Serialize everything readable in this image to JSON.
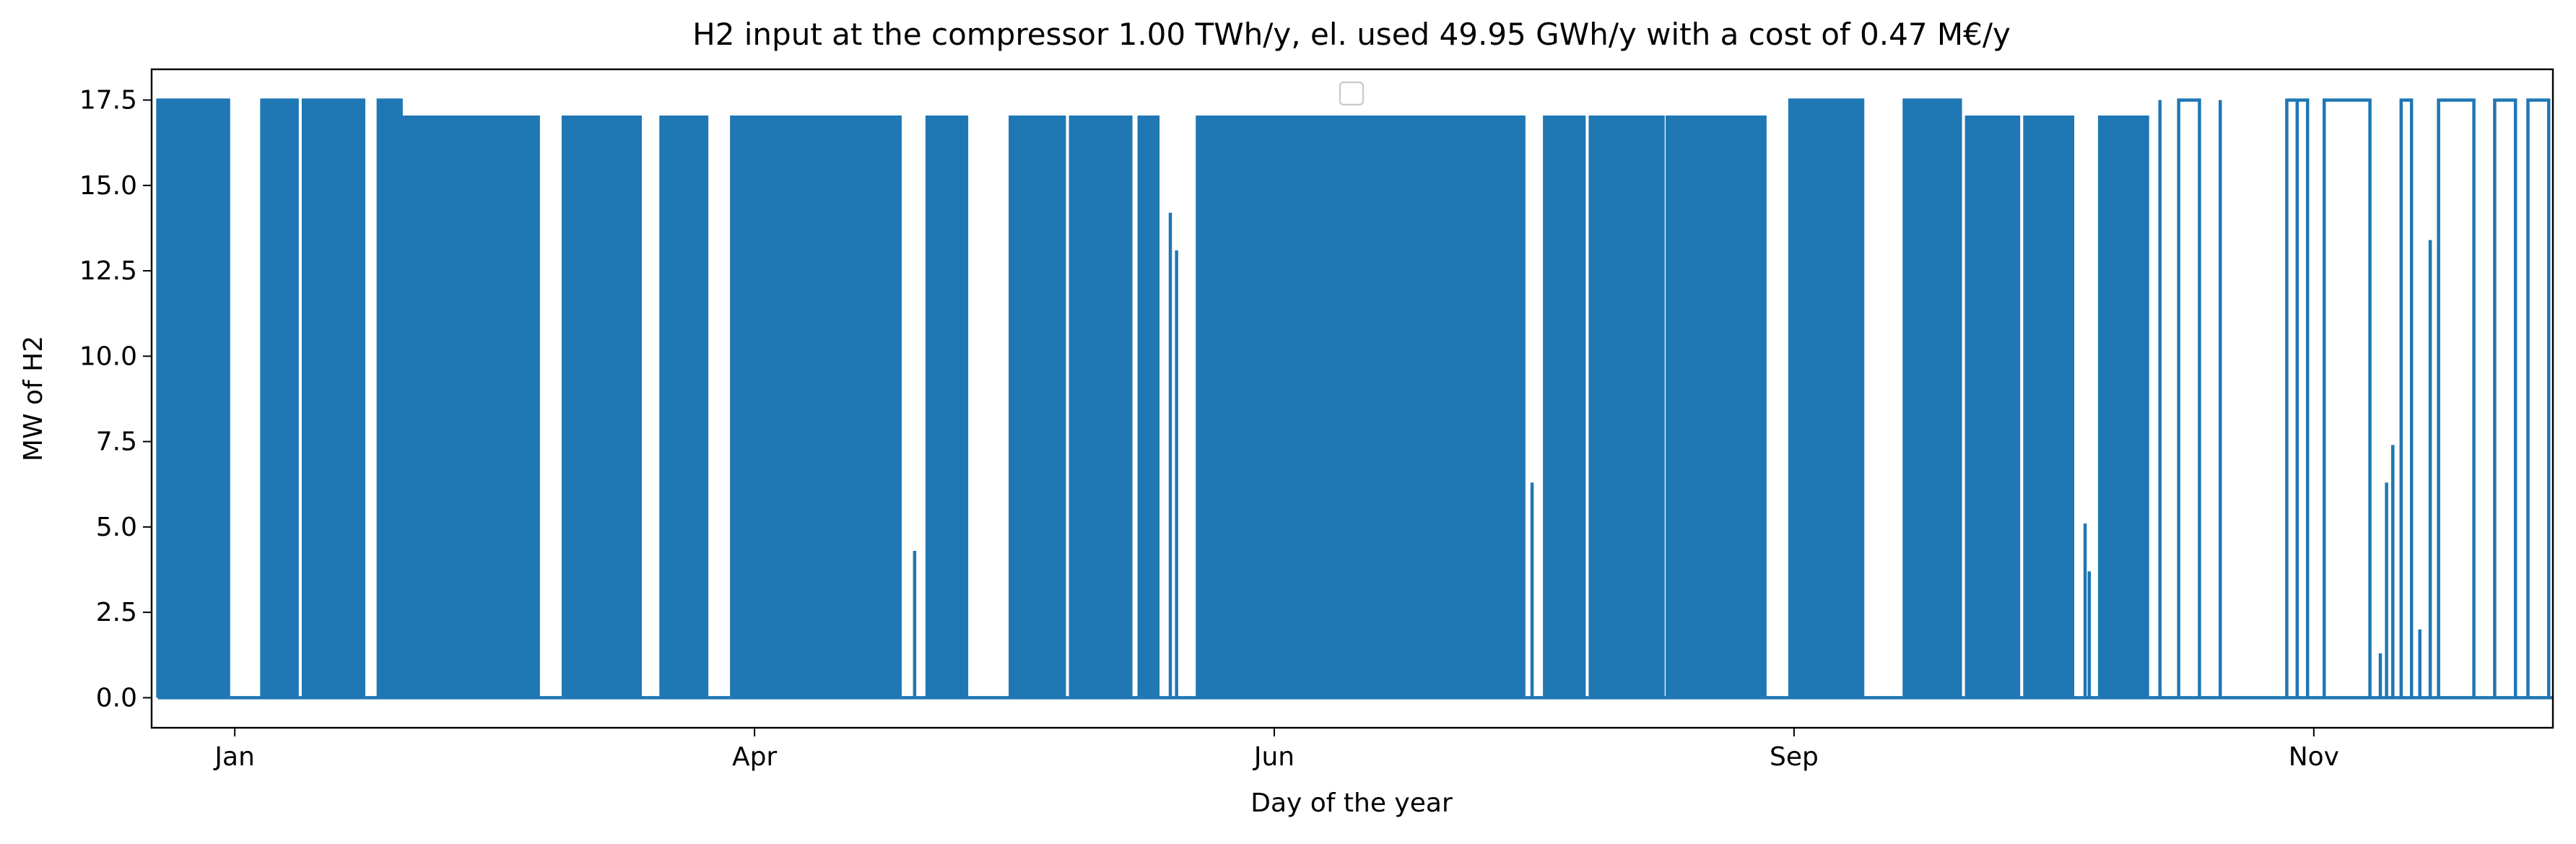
{
  "chart_data": {
    "type": "line",
    "title": "H2 input at the compressor 1.00 TWh/y, el. used 49.95 GWh/y with a cost of 0.47 M€/y",
    "xlabel": "Day of the year",
    "ylabel": "MW of H2",
    "x_unit": "month",
    "xlim": [
      -0.15,
      11.4
    ],
    "ylim": [
      -0.88,
      18.4
    ],
    "x_ticks": [
      {
        "pos": 0.25,
        "label": "Jan"
      },
      {
        "pos": 2.75,
        "label": "Apr"
      },
      {
        "pos": 5.25,
        "label": "Jun"
      },
      {
        "pos": 7.75,
        "label": "Sep"
      },
      {
        "pos": 10.25,
        "label": "Nov"
      }
    ],
    "y_ticks": [
      {
        "value": 0.0,
        "label": "0.0"
      },
      {
        "value": 2.5,
        "label": "2.5"
      },
      {
        "value": 5.0,
        "label": "5.0"
      },
      {
        "value": 7.5,
        "label": "7.5"
      },
      {
        "value": 10.0,
        "label": "10.0"
      },
      {
        "value": 12.5,
        "label": "12.5"
      },
      {
        "value": 15.0,
        "label": "15.0"
      },
      {
        "value": 17.5,
        "label": "17.5"
      }
    ],
    "grid": false,
    "legend": {
      "placement": "upper center",
      "entries": []
    },
    "colors": {
      "series": "#1f77b4"
    },
    "series": [
      {
        "dense_blocks": [
          {
            "start": -0.12,
            "end": 0.22,
            "high": 17.5,
            "spikes": 24
          },
          {
            "start": 0.38,
            "end": 0.55,
            "high": 17.5,
            "spikes": 12
          },
          {
            "start": 0.58,
            "end": 0.87,
            "high": 17.5,
            "spikes": 20
          },
          {
            "start": 0.94,
            "end": 1.05,
            "high": 17.5,
            "spikes": 4
          },
          {
            "start": 1.05,
            "end": 1.55,
            "high": 17.0,
            "spikes": 30
          },
          {
            "start": 1.56,
            "end": 1.71,
            "high": 17.0,
            "spikes": 10
          },
          {
            "start": 1.83,
            "end": 2.2,
            "high": 17.0,
            "spikes": 24
          },
          {
            "start": 2.3,
            "end": 2.52,
            "high": 17.0,
            "spikes": 14
          },
          {
            "start": 2.64,
            "end": 3.12,
            "high": 17.0,
            "spikes": 34
          },
          {
            "start": 3.13,
            "end": 3.45,
            "high": 17.0,
            "spikes": 22
          },
          {
            "start": 3.58,
            "end": 3.77,
            "high": 17.0,
            "spikes": 10
          },
          {
            "start": 3.98,
            "end": 4.24,
            "high": 17.0,
            "spikes": 18
          },
          {
            "start": 4.27,
            "end": 4.56,
            "high": 17.0,
            "spikes": 20
          },
          {
            "start": 4.6,
            "end": 4.69,
            "high": 17.0,
            "spikes": 6
          },
          {
            "start": 4.88,
            "end": 6.45,
            "high": 17.0,
            "spikes": 140
          },
          {
            "start": 6.55,
            "end": 6.74,
            "high": 17.0,
            "spikes": 12
          },
          {
            "start": 6.77,
            "end": 7.12,
            "high": 17.0,
            "spikes": 26
          },
          {
            "start": 7.14,
            "end": 7.61,
            "high": 17.0,
            "spikes": 34
          },
          {
            "start": 7.73,
            "end": 8.08,
            "high": 17.5,
            "spikes": 28
          },
          {
            "start": 8.28,
            "end": 8.55,
            "high": 17.5,
            "spikes": 18
          },
          {
            "start": 8.58,
            "end": 8.83,
            "high": 17.0,
            "spikes": 18
          },
          {
            "start": 8.86,
            "end": 9.09,
            "high": 17.0,
            "spikes": 16
          },
          {
            "start": 9.22,
            "end": 9.45,
            "high": 17.0,
            "spikes": 12
          }
        ],
        "isolated_spikes": [
          [
            -0.12,
            15.9
          ],
          [
            -0.08,
            12.3
          ],
          [
            0.41,
            13.3
          ],
          [
            0.51,
            10.6
          ],
          [
            1.52,
            7.0
          ],
          [
            1.71,
            14.5
          ],
          [
            3.2,
            3.5
          ],
          [
            3.3,
            5.0
          ],
          [
            3.36,
            9.2
          ],
          [
            3.52,
            4.3
          ],
          [
            4.46,
            12.7
          ],
          [
            4.5,
            14.3
          ],
          [
            4.55,
            7.9
          ],
          [
            4.63,
            6.2
          ],
          [
            4.66,
            8.3
          ],
          [
            4.69,
            12.5
          ],
          [
            4.75,
            14.2
          ],
          [
            4.78,
            13.1
          ],
          [
            6.49,
            6.3
          ],
          [
            7.45,
            10.9
          ],
          [
            7.99,
            9.3
          ],
          [
            8.89,
            15.7
          ],
          [
            8.95,
            5.0
          ],
          [
            9.15,
            5.1
          ],
          [
            9.17,
            3.7
          ],
          [
            9.35,
            2.4
          ],
          [
            9.51,
            17.5
          ],
          [
            9.8,
            17.5
          ],
          [
            10.17,
            17.5
          ],
          [
            10.57,
            1.3
          ],
          [
            10.6,
            6.3
          ],
          [
            10.63,
            7.4
          ],
          [
            10.76,
            2.0
          ],
          [
            10.81,
            13.4
          ]
        ],
        "step_pulses": [
          [
            9.6,
            9.7,
            17.5
          ],
          [
            10.12,
            10.22,
            17.5
          ],
          [
            10.3,
            10.52,
            17.5
          ],
          [
            10.67,
            10.72,
            17.5
          ],
          [
            10.85,
            11.02,
            17.5
          ],
          [
            11.12,
            11.22,
            17.5
          ],
          [
            11.28,
            11.38,
            17.5
          ]
        ]
      }
    ]
  }
}
